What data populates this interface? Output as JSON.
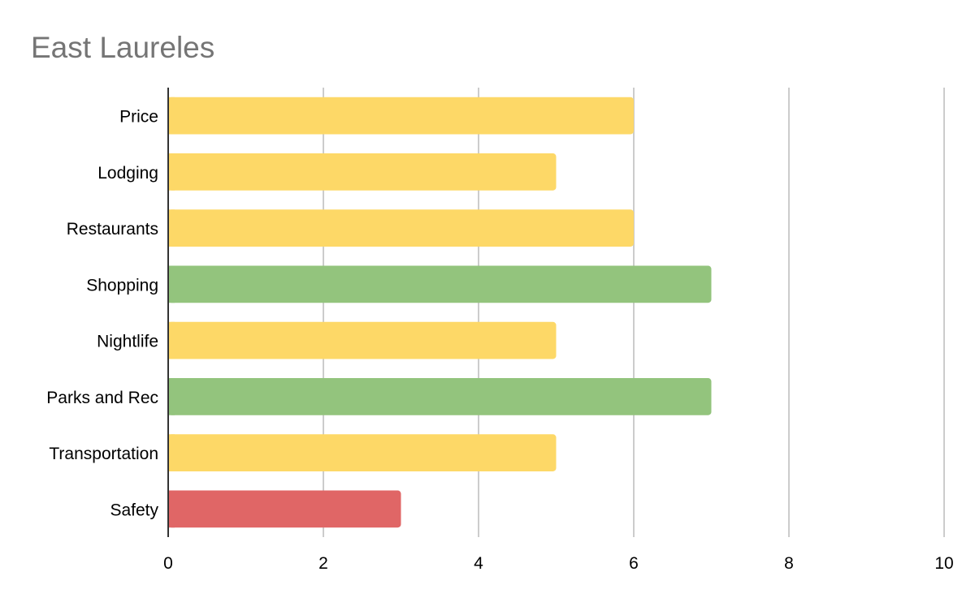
{
  "chart_data": {
    "type": "bar",
    "orientation": "horizontal",
    "title": "East Laureles",
    "xlabel": "",
    "ylabel": "",
    "categories": [
      "Price",
      "Lodging",
      "Restaurants",
      "Shopping",
      "Nightlife",
      "Parks and Rec",
      "Transportation",
      "Safety"
    ],
    "values": [
      6,
      5,
      6,
      7,
      5,
      7,
      5,
      3
    ],
    "bar_colors": [
      "#fdd867",
      "#fdd867",
      "#fdd867",
      "#93c47d",
      "#fdd867",
      "#93c47d",
      "#fdd867",
      "#e06666"
    ],
    "xlim": [
      0,
      10
    ],
    "xticks": [
      0,
      2,
      4,
      6,
      8,
      10
    ],
    "grid": true,
    "legend": "none",
    "colors": {
      "title": "#757575",
      "gridline": "#cccccc",
      "axis": "#333333",
      "label": "#000000"
    }
  }
}
